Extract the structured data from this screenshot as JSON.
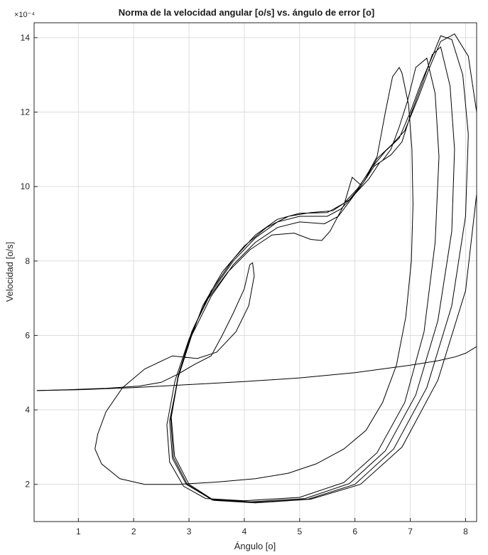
{
  "chart_data": {
    "type": "line",
    "title": "Norma de la velocidad angular [o/s] vs. ángulo de error [o]",
    "xlabel": "Ángulo [o]",
    "ylabel": "Velocidad [o/s]",
    "y_exponent_label": "×10⁻⁴",
    "xlim": [
      0.2,
      8.2
    ],
    "ylim": [
      1.0,
      14.4
    ],
    "x_ticks": [
      "1",
      "2",
      "3",
      "4",
      "5",
      "6",
      "7",
      "8"
    ],
    "y_ticks": [
      "2",
      "4",
      "6",
      "8",
      "10",
      "12",
      "14"
    ],
    "grid": true,
    "line_color": "#000000",
    "series": [
      {
        "points": [
          [
            0.25,
            4.52
          ],
          [
            1.0,
            4.54
          ],
          [
            2.0,
            4.6
          ],
          [
            3.0,
            4.68
          ],
          [
            4.0,
            4.76
          ],
          [
            5.0,
            4.86
          ],
          [
            6.0,
            5.0
          ],
          [
            6.5,
            5.1
          ],
          [
            7.0,
            5.2
          ],
          [
            7.5,
            5.32
          ],
          [
            7.8,
            5.42
          ],
          [
            8.0,
            5.52
          ],
          [
            8.2,
            5.7
          ]
        ]
      },
      {
        "points": [
          [
            0.25,
            4.52
          ],
          [
            0.8,
            4.54
          ],
          [
            1.5,
            4.58
          ],
          [
            2.1,
            4.64
          ],
          [
            2.5,
            4.74
          ],
          [
            2.8,
            4.96
          ],
          [
            3.1,
            5.22
          ],
          [
            3.4,
            5.45
          ],
          [
            3.6,
            6.0
          ],
          [
            3.8,
            6.6
          ],
          [
            4.0,
            7.25
          ],
          [
            4.1,
            7.9
          ],
          [
            4.15,
            7.95
          ],
          [
            4.18,
            7.6
          ],
          [
            4.08,
            6.8
          ],
          [
            3.85,
            6.1
          ],
          [
            3.5,
            5.55
          ],
          [
            3.15,
            5.38
          ],
          [
            2.7,
            5.45
          ],
          [
            2.2,
            5.1
          ],
          [
            1.8,
            4.6
          ],
          [
            1.5,
            3.95
          ],
          [
            1.35,
            3.35
          ],
          [
            1.3,
            2.95
          ],
          [
            1.42,
            2.55
          ],
          [
            1.75,
            2.15
          ],
          [
            2.2,
            2.0
          ],
          [
            2.8,
            2.0
          ],
          [
            3.5,
            2.06
          ],
          [
            4.2,
            2.15
          ],
          [
            4.8,
            2.3
          ],
          [
            5.3,
            2.55
          ],
          [
            5.8,
            2.95
          ],
          [
            6.2,
            3.45
          ],
          [
            6.5,
            4.2
          ],
          [
            6.75,
            5.2
          ],
          [
            6.92,
            6.5
          ],
          [
            7.02,
            8.0
          ],
          [
            7.05,
            9.5
          ],
          [
            7.03,
            11.0
          ],
          [
            6.97,
            12.2
          ],
          [
            6.85,
            13.05
          ],
          [
            6.8,
            13.2
          ],
          [
            6.68,
            12.95
          ],
          [
            6.55,
            12.0
          ],
          [
            6.4,
            10.8
          ],
          [
            6.25,
            10.4
          ],
          [
            6.1,
            10.05
          ],
          [
            5.95,
            10.25
          ],
          [
            5.8,
            9.5
          ],
          [
            5.55,
            8.8
          ],
          [
            5.4,
            8.55
          ],
          [
            5.2,
            8.58
          ],
          [
            4.9,
            8.75
          ],
          [
            4.5,
            8.7
          ],
          [
            4.1,
            8.3
          ],
          [
            3.7,
            7.7
          ],
          [
            3.3,
            6.9
          ],
          [
            3.0,
            5.9
          ],
          [
            2.75,
            4.8
          ],
          [
            2.6,
            3.6
          ],
          [
            2.65,
            2.6
          ],
          [
            2.9,
            1.95
          ],
          [
            3.3,
            1.62
          ],
          [
            4.0,
            1.56
          ],
          [
            5.0,
            1.65
          ],
          [
            5.8,
            2.05
          ],
          [
            6.4,
            2.85
          ],
          [
            6.9,
            4.2
          ],
          [
            7.25,
            6.1
          ],
          [
            7.45,
            8.5
          ],
          [
            7.52,
            10.8
          ],
          [
            7.45,
            12.5
          ],
          [
            7.3,
            13.45
          ],
          [
            7.1,
            13.2
          ],
          [
            6.95,
            12.3
          ],
          [
            6.8,
            11.6
          ],
          [
            6.65,
            11.0
          ],
          [
            6.5,
            10.7
          ],
          [
            6.35,
            10.55
          ],
          [
            6.15,
            10.1
          ],
          [
            5.95,
            9.7
          ],
          [
            5.7,
            9.2
          ],
          [
            5.45,
            9.0
          ],
          [
            5.0,
            9.05
          ],
          [
            4.6,
            8.9
          ],
          [
            4.2,
            8.5
          ],
          [
            3.8,
            7.9
          ],
          [
            3.4,
            7.05
          ],
          [
            3.05,
            6.0
          ],
          [
            2.8,
            4.85
          ],
          [
            2.65,
            3.7
          ],
          [
            2.7,
            2.7
          ],
          [
            2.95,
            2.0
          ],
          [
            3.4,
            1.6
          ],
          [
            4.1,
            1.53
          ],
          [
            5.1,
            1.62
          ],
          [
            5.9,
            2.02
          ],
          [
            6.55,
            2.9
          ],
          [
            7.1,
            4.4
          ],
          [
            7.5,
            6.4
          ],
          [
            7.75,
            8.8
          ],
          [
            7.8,
            11.0
          ],
          [
            7.72,
            12.7
          ],
          [
            7.55,
            13.75
          ],
          [
            7.4,
            13.55
          ],
          [
            7.2,
            12.7
          ],
          [
            7.0,
            11.9
          ],
          [
            6.85,
            11.2
          ],
          [
            6.65,
            10.85
          ],
          [
            6.45,
            10.65
          ],
          [
            6.25,
            10.2
          ],
          [
            6.0,
            9.8
          ],
          [
            5.75,
            9.4
          ],
          [
            5.5,
            9.2
          ],
          [
            5.0,
            9.2
          ],
          [
            4.6,
            9.05
          ],
          [
            4.2,
            8.62
          ],
          [
            3.8,
            8.0
          ],
          [
            3.4,
            7.15
          ],
          [
            3.05,
            6.1
          ],
          [
            2.8,
            4.9
          ],
          [
            2.67,
            3.75
          ],
          [
            2.72,
            2.72
          ],
          [
            2.97,
            2.0
          ],
          [
            3.42,
            1.58
          ],
          [
            4.15,
            1.51
          ],
          [
            5.15,
            1.6
          ],
          [
            6.0,
            2.0
          ],
          [
            6.7,
            2.95
          ],
          [
            7.3,
            4.6
          ],
          [
            7.75,
            6.8
          ],
          [
            8.0,
            9.2
          ],
          [
            8.05,
            11.4
          ],
          [
            7.95,
            13.0
          ],
          [
            7.75,
            13.95
          ],
          [
            7.55,
            14.05
          ],
          [
            7.4,
            13.5
          ],
          [
            7.2,
            12.8
          ],
          [
            7.0,
            12.0
          ],
          [
            6.8,
            11.3
          ],
          [
            6.55,
            10.95
          ],
          [
            6.3,
            10.5
          ],
          [
            6.05,
            9.95
          ],
          [
            5.8,
            9.55
          ],
          [
            5.5,
            9.3
          ],
          [
            5.0,
            9.28
          ],
          [
            4.6,
            9.12
          ],
          [
            4.2,
            8.7
          ],
          [
            3.8,
            8.05
          ],
          [
            3.4,
            7.2
          ],
          [
            3.08,
            6.2
          ],
          [
            2.82,
            5.0
          ],
          [
            2.68,
            3.8
          ],
          [
            2.74,
            2.75
          ],
          [
            3.0,
            2.0
          ],
          [
            3.45,
            1.57
          ],
          [
            4.2,
            1.5
          ],
          [
            5.2,
            1.6
          ],
          [
            6.1,
            2.0
          ],
          [
            6.85,
            3.0
          ],
          [
            7.5,
            4.8
          ],
          [
            8.0,
            7.2
          ],
          [
            8.2,
            9.8
          ],
          [
            8.2,
            12.0
          ],
          [
            8.05,
            13.5
          ],
          [
            7.8,
            14.1
          ],
          [
            7.55,
            13.9
          ],
          [
            7.35,
            13.2
          ],
          [
            7.15,
            12.4
          ],
          [
            6.9,
            11.5
          ],
          [
            6.65,
            11.1
          ],
          [
            6.4,
            10.75
          ],
          [
            6.15,
            10.1
          ],
          [
            5.9,
            9.65
          ],
          [
            5.6,
            9.35
          ],
          [
            5.2,
            9.3
          ],
          [
            4.8,
            9.2
          ],
          [
            4.4,
            8.9
          ],
          [
            4.0,
            8.4
          ],
          [
            3.6,
            7.7
          ],
          [
            3.25,
            6.8
          ],
          [
            2.95,
            5.6
          ]
        ]
      }
    ]
  }
}
